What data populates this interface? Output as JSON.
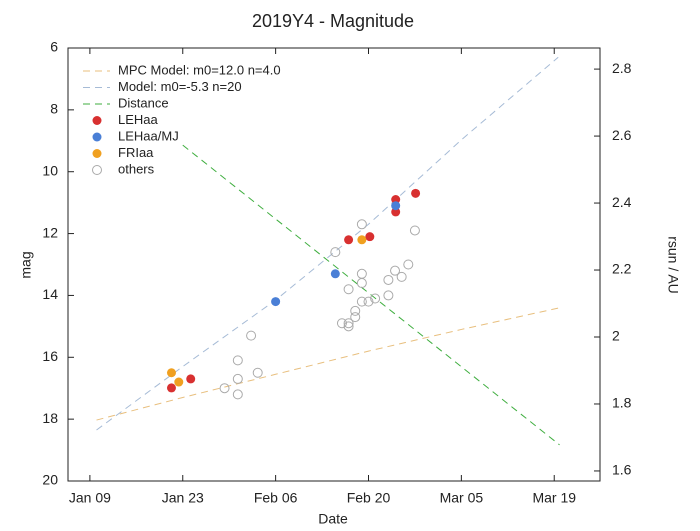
{
  "chart_data": {
    "type": "scatter",
    "title": "2019Y4 - Magnitude",
    "x_label": "Date",
    "y_label": "mag",
    "y2_label": "rsun / AU",
    "xlim": [
      5.7,
      85.9
    ],
    "xticks": [
      {
        "value": 9,
        "label": "Jan 09"
      },
      {
        "value": 23,
        "label": "Jan 23"
      },
      {
        "value": 37,
        "label": "Feb 06"
      },
      {
        "value": 51,
        "label": "Feb 20"
      },
      {
        "value": 65,
        "label": "Mar 05"
      },
      {
        "value": 79,
        "label": "Mar 19"
      }
    ],
    "ylim": [
      6,
      20
    ],
    "y_inverted": true,
    "yticks": [
      6,
      8,
      10,
      12,
      14,
      16,
      18,
      20
    ],
    "y2lim": [
      1.57,
      2.863
    ],
    "y2ticks": [
      1.6,
      1.8,
      2,
      2.2,
      2.4,
      2.6,
      2.8
    ],
    "legend": "top-left",
    "series": [
      {
        "name": "MPC Model: m0=12.0 n=4.0",
        "color": "#e8bf7e",
        "style": "dashed",
        "x": [
          10,
          23,
          37,
          51,
          65,
          79.8
        ],
        "values": [
          18.03,
          17.3,
          16.55,
          15.8,
          15.1,
          14.4
        ]
      },
      {
        "name": "Model: m0=-5.3 n=20",
        "color": "#a6bbd6",
        "style": "dashed",
        "x": [
          10,
          23,
          37,
          51,
          65,
          79.6
        ],
        "values": [
          18.35,
          16.3,
          14.15,
          11.7,
          8.97,
          6.3
        ]
      },
      {
        "name": "Distance",
        "color": "#3fae3f",
        "style": "dashed",
        "axis": "y2",
        "x": [
          23,
          79.8
        ],
        "values": [
          2.573,
          1.678
        ]
      },
      {
        "name": "LEHaa",
        "color": "#d83030",
        "style": "filled",
        "x": [
          21.3,
          24.2,
          48,
          51.2,
          55.1,
          55.1,
          58.1
        ],
        "values": [
          16.99,
          16.7,
          12.2,
          12.1,
          10.9,
          11.3,
          10.7
        ]
      },
      {
        "name": "LEHaa/MJ",
        "color": "#4a7fd6",
        "style": "filled",
        "x": [
          37,
          46,
          55.1
        ],
        "values": [
          14.2,
          13.3,
          11.1
        ]
      },
      {
        "name": "FRIaa",
        "color": "#f0a020",
        "style": "filled",
        "x": [
          21.3,
          22.4,
          50
        ],
        "values": [
          16.5,
          16.8,
          12.2
        ]
      },
      {
        "name": "others",
        "color": "#aaaaaa",
        "style": "open",
        "x": [
          29.3,
          31.3,
          31.3,
          31.3,
          33.3,
          34.3,
          46,
          47,
          48,
          48,
          48,
          49,
          49,
          50,
          50,
          50,
          50,
          51,
          52,
          54,
          54,
          55,
          56,
          57,
          58
        ],
        "values": [
          17.0,
          16.1,
          16.7,
          17.2,
          15.3,
          16.5,
          12.6,
          14.9,
          14.9,
          15.0,
          13.8,
          14.5,
          14.7,
          11.7,
          13.3,
          13.6,
          14.2,
          14.2,
          14.1,
          14.0,
          13.5,
          13.2,
          13.4,
          13.0,
          11.9
        ]
      }
    ]
  }
}
